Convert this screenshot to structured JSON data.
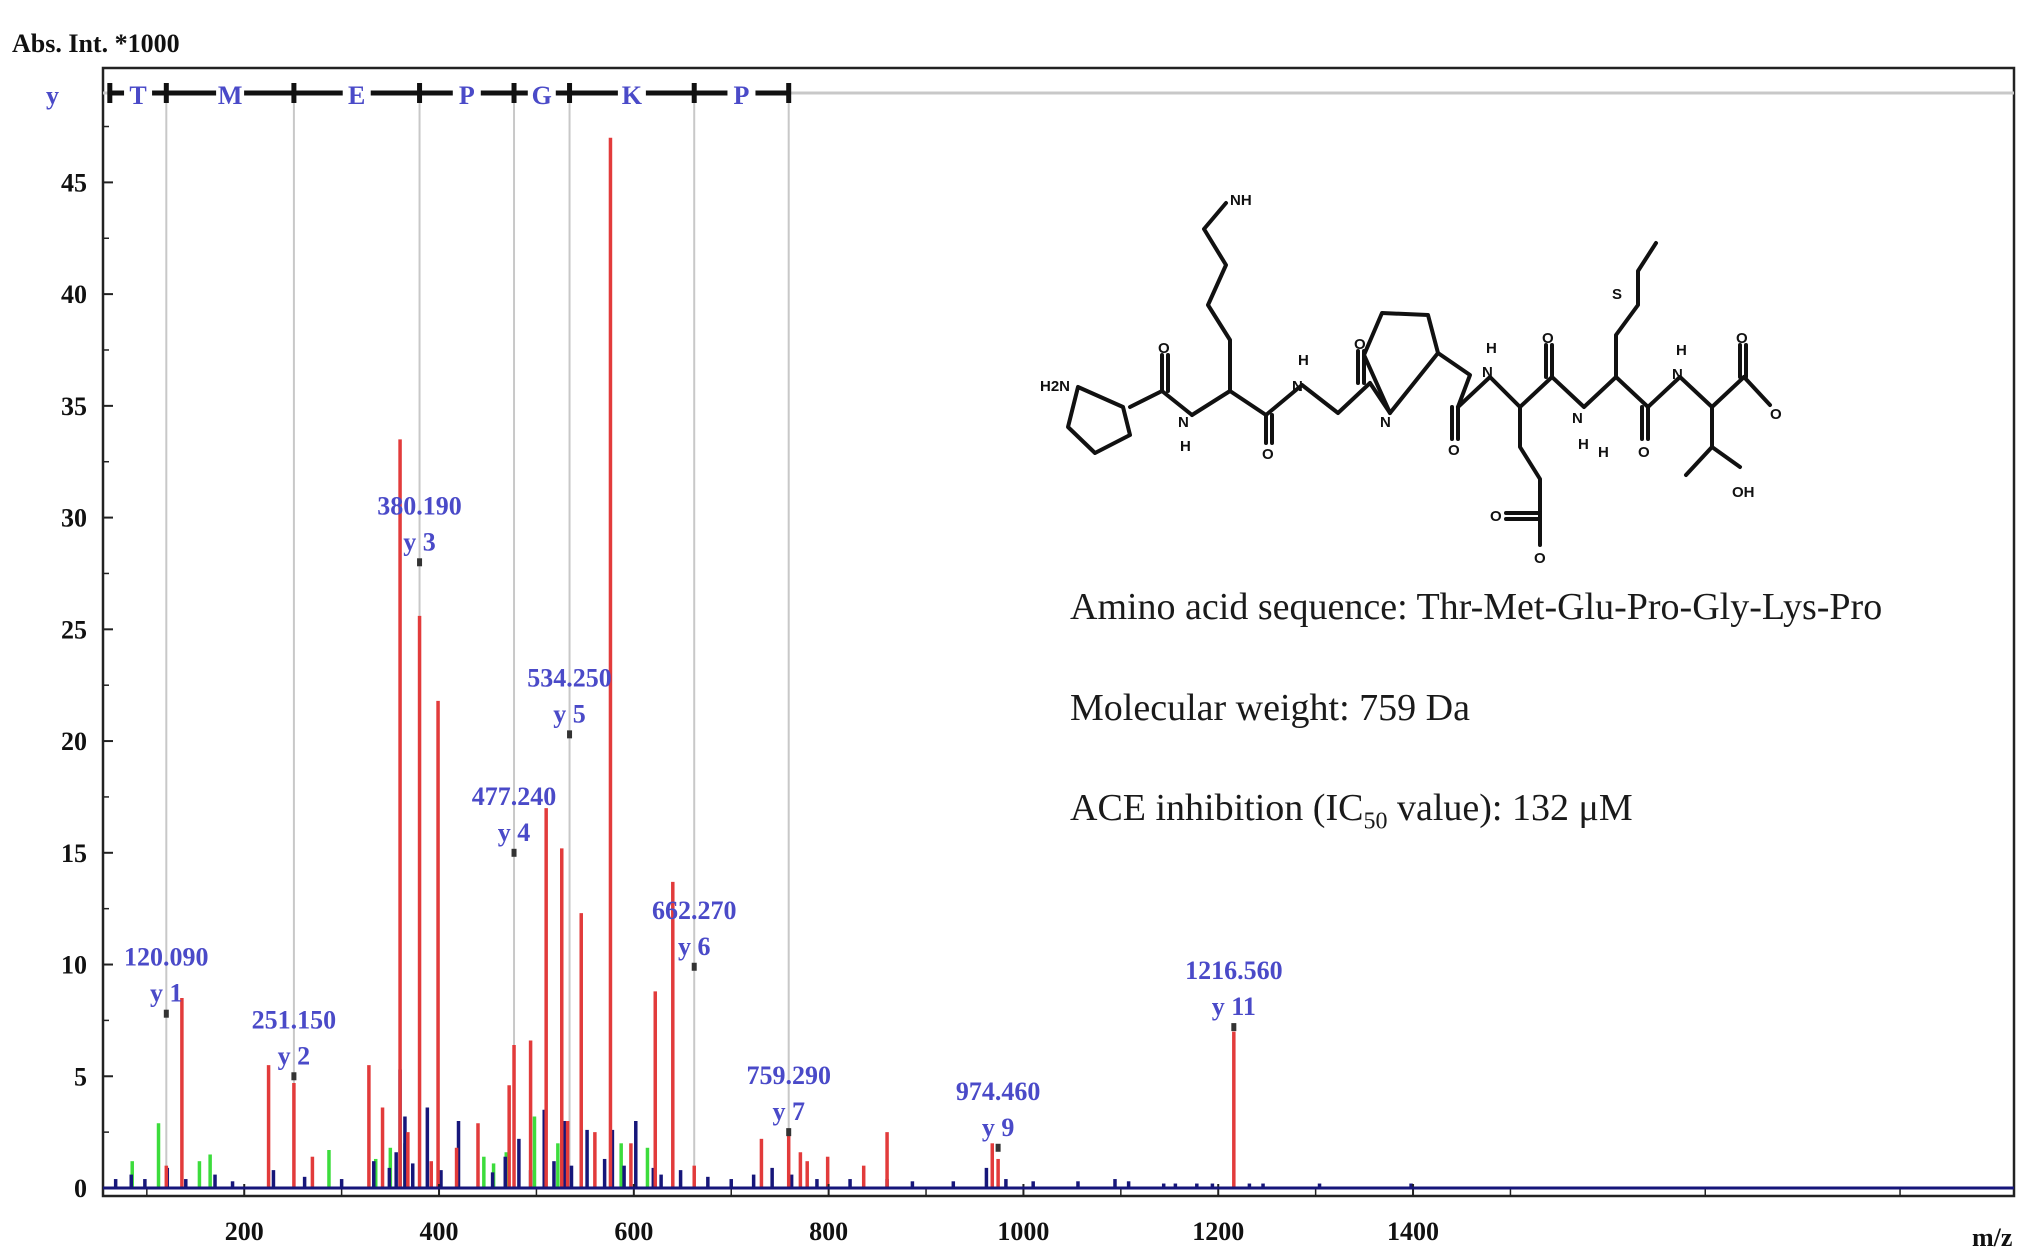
{
  "chart_data": {
    "type": "bar",
    "title": "",
    "ylabel": "Abs. Int. *1000",
    "xlabel": "m/z",
    "xlim": [
      55,
      2017
    ],
    "ylim": [
      0,
      49
    ],
    "x_ticks": [
      200,
      400,
      600,
      800,
      1000,
      1200,
      1400
    ],
    "y_ticks": [
      0,
      5,
      10,
      15,
      20,
      25,
      30,
      35,
      40,
      45
    ],
    "grid": false,
    "legend": "none",
    "ion_series_label": "y",
    "sequence_ladder": [
      {
        "residue": "T",
        "from": 62,
        "to": 120
      },
      {
        "residue": "M",
        "from": 120,
        "to": 251
      },
      {
        "residue": "E",
        "from": 251,
        "to": 380
      },
      {
        "residue": "P",
        "from": 380,
        "to": 477
      },
      {
        "residue": "G",
        "from": 477,
        "to": 534
      },
      {
        "residue": "K",
        "from": 534,
        "to": 662
      },
      {
        "residue": "P",
        "from": 662,
        "to": 759
      }
    ],
    "annotated_peaks": [
      {
        "mz_label": "120.090",
        "ion": "y 1",
        "x": 120,
        "marker_y": 7.8
      },
      {
        "mz_label": "251.150",
        "ion": "y 2",
        "x": 251,
        "marker_y": 5.0
      },
      {
        "mz_label": "380.190",
        "ion": "y 3",
        "x": 380,
        "marker_y": 28.0
      },
      {
        "mz_label": "477.240",
        "ion": "y 4",
        "x": 477,
        "marker_y": 15.0
      },
      {
        "mz_label": "534.250",
        "ion": "y 5",
        "x": 534,
        "marker_y": 20.3
      },
      {
        "mz_label": "662.270",
        "ion": "y 6",
        "x": 662,
        "marker_y": 9.9
      },
      {
        "mz_label": "759.290",
        "ion": "y 7",
        "x": 759,
        "marker_y": 2.5
      },
      {
        "mz_label": "974.460",
        "ion": "y 9",
        "x": 974,
        "marker_y": 1.8
      },
      {
        "mz_label": "1216.560",
        "ion": "y 11",
        "x": 1216,
        "marker_y": 7.2
      }
    ],
    "series": [
      {
        "name": "",
        "color": "#e23b3b",
        "x": [
          120,
          136,
          225,
          251,
          270,
          328,
          342,
          360,
          368,
          380,
          392,
          399,
          418,
          440,
          472,
          477,
          494,
          510,
          526,
          532,
          546,
          560,
          576,
          597,
          622,
          640,
          662,
          731,
          759,
          771,
          778,
          799,
          836,
          860,
          968,
          974,
          1216
        ],
        "values": [
          1.0,
          8.5,
          5.5,
          4.7,
          1.4,
          5.5,
          3.6,
          33.5,
          2.5,
          25.6,
          1.2,
          21.8,
          1.8,
          2.9,
          4.6,
          6.4,
          6.6,
          17.0,
          15.2,
          3.0,
          12.3,
          2.5,
          47.0,
          2.0,
          8.8,
          13.7,
          1.0,
          2.2,
          2.5,
          1.6,
          1.2,
          1.4,
          1.0,
          2.5,
          2.0,
          1.3,
          7.0
        ]
      },
      {
        "name": "",
        "color": "#3cdc3c",
        "x": [
          85,
          112,
          154,
          165,
          287,
          335,
          350,
          365,
          446,
          456,
          469,
          498,
          522,
          530,
          587,
          614
        ],
        "values": [
          1.2,
          2.9,
          1.2,
          1.5,
          1.7,
          1.3,
          1.8,
          2.0,
          1.4,
          1.1,
          1.6,
          3.2,
          2.0,
          1.3,
          2.0,
          1.8
        ]
      },
      {
        "name": "",
        "color": "#16167a",
        "x": [
          68,
          84,
          98,
          121,
          140,
          170,
          188,
          230,
          262,
          300,
          333,
          349,
          356,
          360,
          365,
          373,
          388,
          402,
          420,
          455,
          468,
          482,
          494,
          508,
          518,
          529,
          536,
          552,
          570,
          578,
          590,
          602,
          620,
          628,
          648,
          676,
          700,
          723,
          742,
          762,
          788,
          822,
          860,
          886,
          928,
          962,
          982,
          1010,
          1056,
          1094,
          1108,
          1144,
          1156,
          1178,
          1194,
          1232,
          1246,
          1304,
          1398
        ],
        "values": [
          0.4,
          0.6,
          0.4,
          0.9,
          0.4,
          0.6,
          0.3,
          0.8,
          0.5,
          0.4,
          1.2,
          0.9,
          1.6,
          5.3,
          3.2,
          1.1,
          3.6,
          0.8,
          3.0,
          0.7,
          1.4,
          2.2,
          0.8,
          3.5,
          1.2,
          3.0,
          1.0,
          2.6,
          1.3,
          2.6,
          1.0,
          3.0,
          0.9,
          0.6,
          0.8,
          0.5,
          0.4,
          0.6,
          0.9,
          0.6,
          0.4,
          0.4,
          0.4,
          0.3,
          0.3,
          0.9,
          0.4,
          0.3,
          0.3,
          0.4,
          0.3,
          0.2,
          0.2,
          0.2,
          0.2,
          0.2,
          0.2,
          0.2,
          0.2
        ]
      }
    ]
  },
  "info": {
    "sequence_label": "Amino acid sequence: Thr-Met-Glu-Pro-Gly-Lys-Pro",
    "mw_label": "Molecular weight: 759 Da",
    "ace_prefix": "ACE inhibition (IC",
    "ace_sub": "50",
    "ace_suffix": " value): 132 μM"
  },
  "structure": {
    "atoms": [
      "NH",
      "H2N",
      "O",
      "H",
      "N",
      "O",
      "H",
      "N",
      "O",
      "N",
      "O",
      "H",
      "N",
      "O",
      "O",
      "O",
      "H",
      "N",
      "H",
      "O",
      "S",
      "H",
      "N",
      "O",
      "O",
      "OH"
    ]
  }
}
